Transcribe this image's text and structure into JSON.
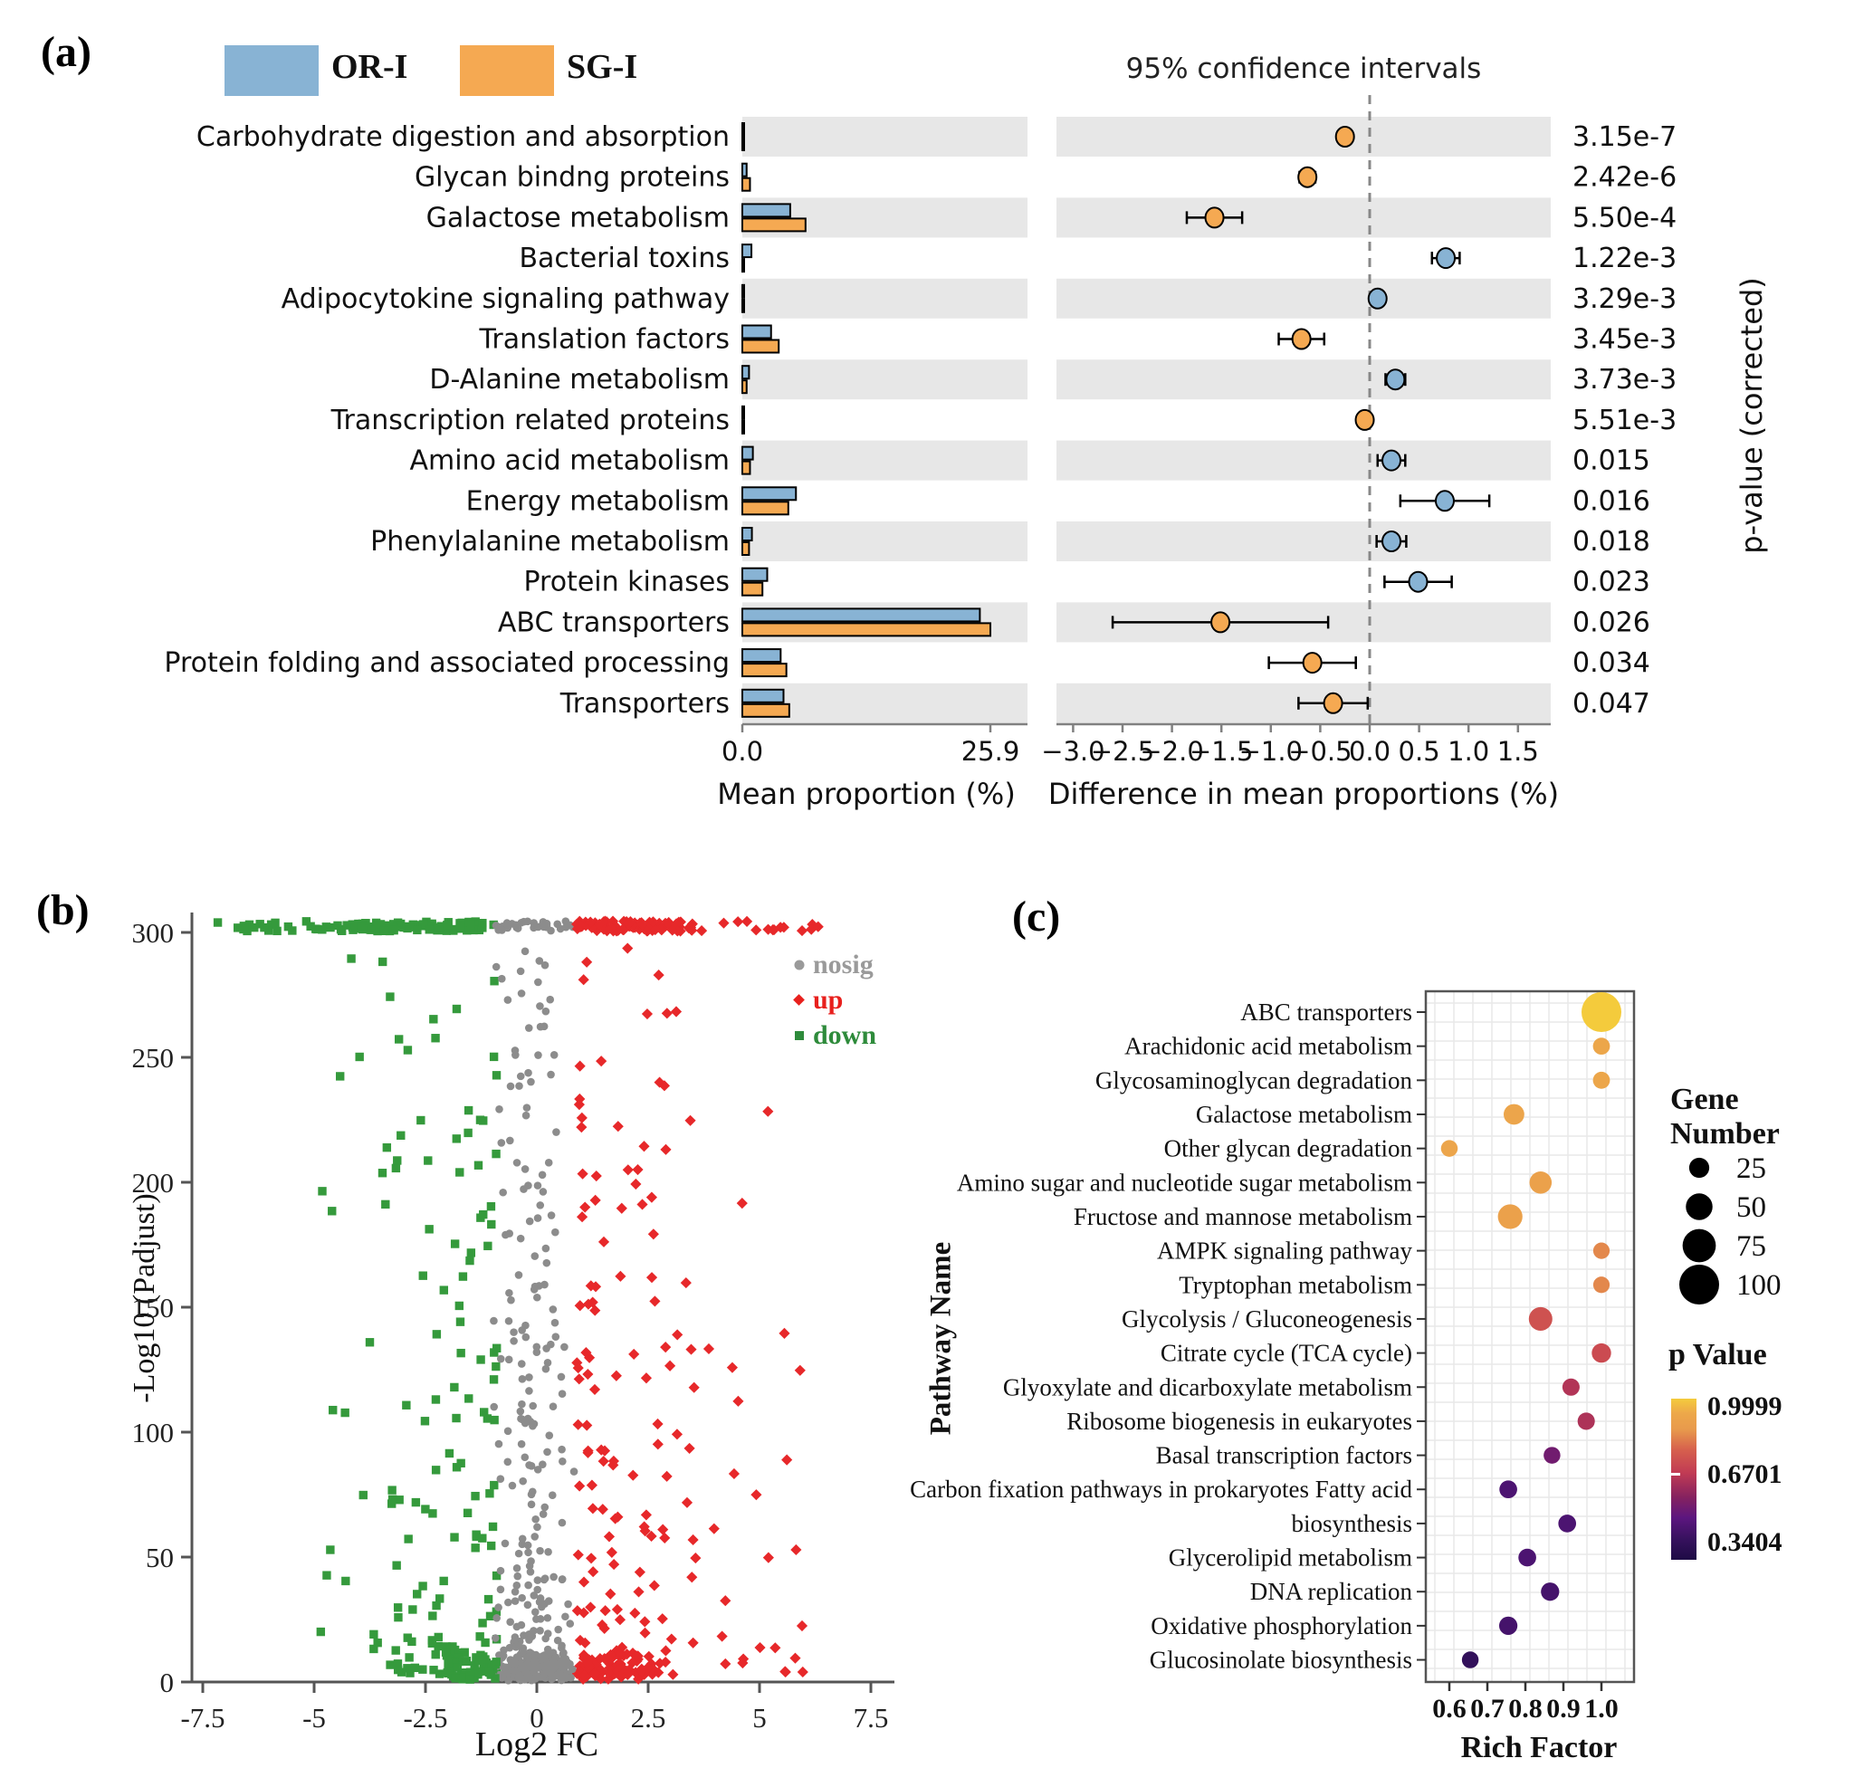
{
  "figure": {
    "background": "#FFFFFF"
  },
  "colors": {
    "or1_blue": "#88B3D4",
    "sg1_orange": "#F5A952",
    "band_gray": "#E7E7E7",
    "axis_gray": "#555555",
    "dashed_line": "#888888",
    "nosig_gray": "#8C8C8C",
    "up_red": "#E7282A",
    "down_green": "#359A3C",
    "bubble_grid": "#E9E9E9",
    "legend_circle_black": "#000000"
  },
  "chart_data": [
    {
      "type": "bar+interval",
      "panel_label": "(a)",
      "title": "95% confidence intervals",
      "groups": [
        {
          "name": "OR-I",
          "color": "#88B3D4"
        },
        {
          "name": "SG-I",
          "color": "#F5A952"
        }
      ],
      "xlabel_left": "Mean proportion (%)",
      "xlabel_right": "Difference in mean proportions (%)",
      "right_axis_label": "p-value (corrected)",
      "left_axis_ticks": [
        "0.0",
        "25.9"
      ],
      "left_axis_max": 25.9,
      "right_axis_ticks": [
        -3.0,
        -2.5,
        -2.0,
        -1.5,
        -1.0,
        -0.5,
        0.0,
        0.5,
        1.0,
        1.5
      ],
      "rows": [
        {
          "label": "Carbohydrate digestion and absorption",
          "or1": 0.15,
          "sg1": 0.1,
          "diff": -0.25,
          "ci": [
            -0.32,
            -0.18
          ],
          "p": "3.15e-7",
          "dot": "SG-I"
        },
        {
          "label": "Glycan bindng proteins",
          "or1": 0.45,
          "sg1": 0.8,
          "diff": -0.63,
          "ci": [
            -0.71,
            -0.55
          ],
          "p": "2.42e-6",
          "dot": "SG-I"
        },
        {
          "label": "Galactose metabolism",
          "or1": 5.0,
          "sg1": 6.6,
          "diff": -1.57,
          "ci": [
            -1.85,
            -1.29
          ],
          "p": "5.50e-4",
          "dot": "SG-I"
        },
        {
          "label": "Bacterial toxins",
          "or1": 0.95,
          "sg1": 0.15,
          "diff": 0.77,
          "ci": [
            0.63,
            0.91
          ],
          "p": "1.22e-3",
          "dot": "OR-I"
        },
        {
          "label": "Adipocytokine signaling pathway",
          "or1": 0.12,
          "sg1": 0.07,
          "diff": 0.08,
          "ci": [
            0.02,
            0.14
          ],
          "p": "3.29e-3",
          "dot": "OR-I"
        },
        {
          "label": "Translation factors",
          "or1": 3.0,
          "sg1": 3.8,
          "diff": -0.69,
          "ci": [
            -0.92,
            -0.46
          ],
          "p": "3.45e-3",
          "dot": "SG-I"
        },
        {
          "label": "D-Alanine metabolism",
          "or1": 0.7,
          "sg1": 0.45,
          "diff": 0.26,
          "ci": [
            0.16,
            0.36
          ],
          "p": "3.73e-3",
          "dot": "OR-I"
        },
        {
          "label": "Transcription related proteins",
          "or1": 0.1,
          "sg1": 0.06,
          "diff": -0.05,
          "ci": [
            -0.09,
            -0.01
          ],
          "p": "5.51e-3",
          "dot": "SG-I"
        },
        {
          "label": "Amino acid metabolism",
          "or1": 1.1,
          "sg1": 0.8,
          "diff": 0.22,
          "ci": [
            0.08,
            0.36
          ],
          "p": "0.015",
          "dot": "OR-I"
        },
        {
          "label": "Energy metabolism",
          "or1": 5.6,
          "sg1": 4.8,
          "diff": 0.76,
          "ci": [
            0.31,
            1.21
          ],
          "p": "0.016",
          "dot": "OR-I"
        },
        {
          "label": "Phenylalanine metabolism",
          "or1": 1.0,
          "sg1": 0.7,
          "diff": 0.22,
          "ci": [
            0.07,
            0.37
          ],
          "p": "0.018",
          "dot": "OR-I"
        },
        {
          "label": "Protein kinases",
          "or1": 2.6,
          "sg1": 2.1,
          "diff": 0.49,
          "ci": [
            0.15,
            0.83
          ],
          "p": "0.023",
          "dot": "OR-I"
        },
        {
          "label": "ABC transporters",
          "or1": 24.8,
          "sg1": 25.9,
          "diff": -1.51,
          "ci": [
            -2.6,
            -0.42
          ],
          "p": "0.026",
          "dot": "SG-I"
        },
        {
          "label": "Protein folding and associated processing",
          "or1": 4.0,
          "sg1": 4.6,
          "diff": -0.58,
          "ci": [
            -1.02,
            -0.14
          ],
          "p": "0.034",
          "dot": "SG-I"
        },
        {
          "label": "Transporters",
          "or1": 4.3,
          "sg1": 4.9,
          "diff": -0.37,
          "ci": [
            -0.72,
            -0.02
          ],
          "p": "0.047",
          "dot": "SG-I"
        }
      ]
    },
    {
      "type": "scatter",
      "panel_label": "(b)",
      "xlabel": "Log2 FC",
      "ylabel": "-Log10 (Padjust)",
      "x_ticks": [
        "-7.5",
        "-5",
        "-2.5",
        "0",
        "2.5",
        "5",
        "7.5"
      ],
      "x_tick_values": [
        -7.5,
        -5,
        -2.5,
        0,
        2.5,
        5,
        7.5
      ],
      "y_ticks": [
        0,
        50,
        100,
        150,
        200,
        250,
        300
      ],
      "xlim": [
        -8.2,
        8.0
      ],
      "ylim": [
        0,
        310
      ],
      "legend": [
        {
          "label": "nosig",
          "class": "nosig",
          "color": "#9A9A9A",
          "marker": "circle"
        },
        {
          "label": "up",
          "class": "up",
          "color": "#E8201D",
          "marker": "diamond"
        },
        {
          "label": "down",
          "class": "down",
          "color": "#2E8B3B",
          "marker": "square"
        }
      ],
      "seed": 1337,
      "clusters": [
        {
          "name": "band-down",
          "class": "down",
          "n": 85,
          "x": [
            -4.6,
            -0.85
          ],
          "y": [
            300.5,
            304.5
          ]
        },
        {
          "name": "band-down-far",
          "class": "down",
          "n": 22,
          "x": [
            -7.35,
            -4.6
          ],
          "y": [
            300.5,
            304.5
          ]
        },
        {
          "name": "band-nosig",
          "class": "nosig",
          "n": 30,
          "x": [
            -0.95,
            0.85
          ],
          "y": [
            300.5,
            304.5
          ]
        },
        {
          "name": "band-up",
          "class": "up",
          "n": 85,
          "x": [
            0.85,
            3.6
          ],
          "y": [
            300.5,
            304.5
          ]
        },
        {
          "name": "band-up-far",
          "class": "up",
          "n": 14,
          "x": [
            3.6,
            6.4
          ],
          "y": [
            300.5,
            304.5
          ]
        },
        {
          "name": "mid-down",
          "class": "down",
          "n": 130,
          "x": [
            -3.4,
            -0.9
          ],
          "y": [
            3,
            298
          ],
          "ypow": 2.0,
          "xpow": 1.6
        },
        {
          "name": "mid-down-far",
          "class": "down",
          "n": 18,
          "x": [
            -5.4,
            -3.4
          ],
          "y": [
            3,
            290
          ],
          "ypow": 1.6
        },
        {
          "name": "mid-nosig",
          "class": "nosig",
          "n": 260,
          "x": [
            -1.05,
            0.9
          ],
          "y": [
            2,
            295
          ],
          "ypow": 2.2,
          "center": true
        },
        {
          "name": "mid-up",
          "class": "up",
          "n": 150,
          "x": [
            0.9,
            3.6
          ],
          "y": [
            3,
            298
          ],
          "ypow": 2.0,
          "xpow": 1.6
        },
        {
          "name": "mid-up-far",
          "class": "up",
          "n": 25,
          "x": [
            3.6,
            6.3
          ],
          "y": [
            4,
            230
          ],
          "ypow": 1.7
        },
        {
          "name": "base-nosig",
          "class": "nosig",
          "n": 150,
          "x": [
            -0.9,
            0.9
          ],
          "y": [
            0.5,
            12
          ],
          "center": true
        },
        {
          "name": "base-down",
          "class": "down",
          "n": 45,
          "x": [
            -2.1,
            -0.9
          ],
          "y": [
            1,
            12
          ]
        },
        {
          "name": "base-up",
          "class": "up",
          "n": 60,
          "x": [
            0.9,
            2.6
          ],
          "y": [
            1,
            12
          ]
        }
      ]
    },
    {
      "type": "bubble",
      "panel_label": "(c)",
      "xlabel": "Rich Factor",
      "ylabel": "Pathway Name",
      "x_ticks": [
        "0.6",
        "0.7",
        "0.8",
        "0.9",
        "1.0"
      ],
      "x_tick_values": [
        0.6,
        0.7,
        0.8,
        0.9,
        1.0
      ],
      "size_legend": {
        "title": "Gene Number",
        "entries": [
          25,
          50,
          75,
          100
        ]
      },
      "color_legend": {
        "title": "p Value",
        "ticks": [
          "0.9999",
          "0.6701",
          "0.3404"
        ],
        "tick_values": [
          0.9999,
          0.6701,
          0.3404
        ]
      },
      "rows": [
        {
          "pathway": "ABC transporters",
          "rich_factor": 1.0,
          "gene_number": 100,
          "p_value": 0.9999
        },
        {
          "pathway": "Arachidonic acid metabolism",
          "rich_factor": 1.0,
          "gene_number": 13,
          "p_value": 0.95
        },
        {
          "pathway": "Glycosaminoglycan degradation",
          "rich_factor": 1.0,
          "gene_number": 13,
          "p_value": 0.95
        },
        {
          "pathway": "Galactose metabolism",
          "rich_factor": 0.77,
          "gene_number": 27,
          "p_value": 0.94
        },
        {
          "pathway": "Other glycan degradation",
          "rich_factor": 0.6,
          "gene_number": 12,
          "p_value": 0.94
        },
        {
          "pathway": "Amino sugar and nucleotide sugar metabolism",
          "rich_factor": 0.84,
          "gene_number": 33,
          "p_value": 0.92
        },
        {
          "pathway": "Fructose and mannose metabolism",
          "rich_factor": 0.76,
          "gene_number": 42,
          "p_value": 0.92
        },
        {
          "pathway": "AMPK signaling pathway",
          "rich_factor": 1.0,
          "gene_number": 11,
          "p_value": 0.85
        },
        {
          "pathway": "Tryptophan metabolism",
          "rich_factor": 1.0,
          "gene_number": 11,
          "p_value": 0.85
        },
        {
          "pathway": "Glycolysis / Gluconeogenesis",
          "rich_factor": 0.84,
          "gene_number": 38,
          "p_value": 0.74
        },
        {
          "pathway": "Citrate cycle (TCA cycle)",
          "rich_factor": 1.0,
          "gene_number": 22,
          "p_value": 0.72
        },
        {
          "pathway": "Glyoxylate and dicarboxylate metabolism",
          "rich_factor": 0.92,
          "gene_number": 14,
          "p_value": 0.64
        },
        {
          "pathway": "Ribosome biogenesis in eukaryotes",
          "rich_factor": 0.96,
          "gene_number": 14,
          "p_value": 0.63
        },
        {
          "pathway": "Basal transcription factors",
          "rich_factor": 0.87,
          "gene_number": 12,
          "p_value": 0.5
        },
        {
          "pathway": "Carbon fixation pathways in prokaryotes Fatty acid",
          "rich_factor": 0.755,
          "gene_number": 16,
          "p_value": 0.4
        },
        {
          "pathway": "biosynthesis",
          "rich_factor": 0.91,
          "gene_number": 16,
          "p_value": 0.4
        },
        {
          "pathway": "Glycerolipid metabolism",
          "rich_factor": 0.805,
          "gene_number": 16,
          "p_value": 0.4
        },
        {
          "pathway": "DNA replication",
          "rich_factor": 0.865,
          "gene_number": 18,
          "p_value": 0.38
        },
        {
          "pathway": "Oxidative phosphorylation",
          "rich_factor": 0.755,
          "gene_number": 18,
          "p_value": 0.38
        },
        {
          "pathway": "Glucosinolate biosynthesis",
          "rich_factor": 0.655,
          "gene_number": 12,
          "p_value": 0.32
        }
      ]
    }
  ]
}
